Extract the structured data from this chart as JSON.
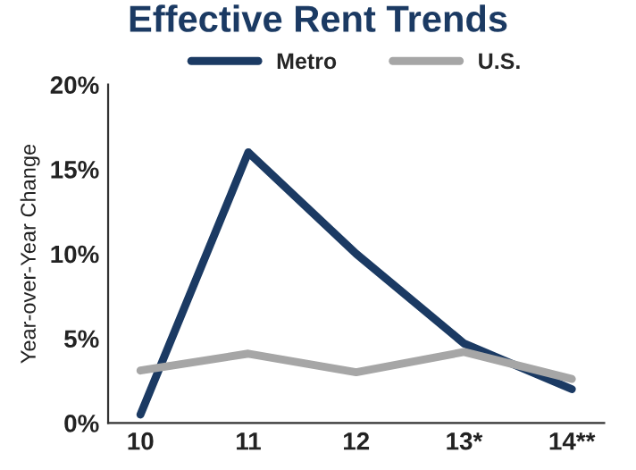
{
  "chart_data": {
    "type": "line",
    "title": "Effective Rent Trends",
    "ylabel": "Year-over-Year Change",
    "categories": [
      "10",
      "11",
      "12",
      "13*",
      "14**"
    ],
    "series": [
      {
        "name": "Metro",
        "color": "#1b3a63",
        "values": [
          0.5,
          16,
          10,
          4.7,
          2
        ]
      },
      {
        "name": "U.S.",
        "color": "#a6a6a6",
        "values": [
          3.1,
          4.1,
          3.0,
          4.2,
          2.6
        ]
      }
    ],
    "ylim": [
      0,
      20
    ],
    "yticks": [
      {
        "value": 0,
        "label": "0%"
      },
      {
        "value": 5,
        "label": "5%"
      },
      {
        "value": 10,
        "label": "10%"
      },
      {
        "value": 15,
        "label": "15%"
      },
      {
        "value": 20,
        "label": "20%"
      }
    ],
    "grid": false,
    "legend": "top",
    "marker": "none",
    "line_style": "solid"
  }
}
